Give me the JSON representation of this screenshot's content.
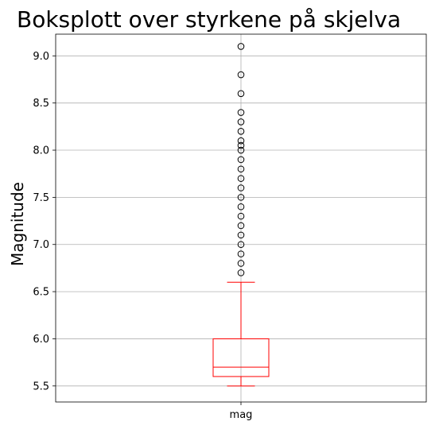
{
  "chart_data": {
    "type": "box",
    "title": "Boksplott over styrkene på skjelva",
    "xlabel": "",
    "ylabel": "Magnitude",
    "categories": [
      "mag"
    ],
    "ylim": [
      5.33,
      9.23
    ],
    "yticks": [
      "5.5",
      "6.0",
      "6.5",
      "7.0",
      "7.5",
      "8.0",
      "8.5",
      "9.0"
    ],
    "grid": true,
    "colors": {
      "box": "#ff0000",
      "flier": "#000000",
      "grid": "#b0b0b0"
    },
    "box": {
      "whisker_low": 5.5,
      "q1": 5.6,
      "median": 5.7,
      "q3": 6.0,
      "whisker_high": 6.6
    },
    "outliers": [
      6.7,
      6.8,
      6.9,
      7.0,
      7.1,
      7.2,
      7.3,
      7.4,
      7.5,
      7.6,
      7.7,
      7.8,
      7.9,
      8.0,
      8.05,
      8.1,
      8.2,
      8.3,
      8.4,
      8.6,
      8.8,
      9.1
    ]
  }
}
